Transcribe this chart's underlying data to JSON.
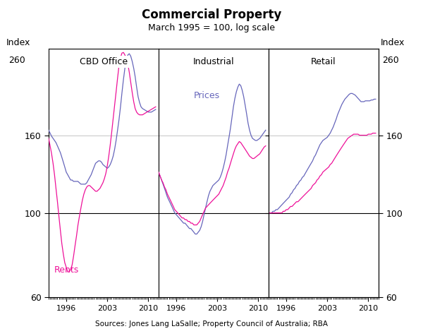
{
  "title": "Commercial Property",
  "subtitle": "March 1995 = 100, log scale",
  "ylabel_left": "Index",
  "ylabel_right": "Index",
  "source": "Sources: Jones Lang LaSalle; Property Council of Australia; RBA",
  "panel_labels": [
    "CBD Office",
    "Industrial",
    "Retail"
  ],
  "prices_color": "#6666bb",
  "rents_color": "#ee1199",
  "ylim": [
    60,
    270
  ],
  "yticks": [
    60,
    100,
    160
  ],
  "price_label": "Prices",
  "rent_label": "Rents",
  "background_color": "#ffffff",
  "grid_color": "#bbbbbb",
  "top_label_value": "260"
}
